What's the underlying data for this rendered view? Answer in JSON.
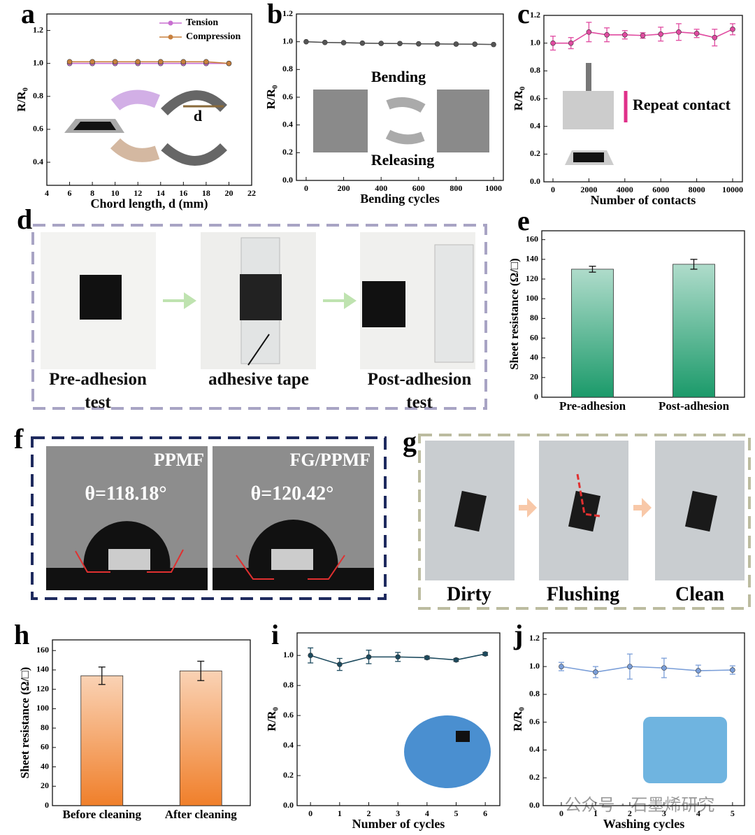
{
  "chart_data": [
    {
      "type": "line",
      "xlabel": "Chord length, d (mm)",
      "ylabel": "R/R₀",
      "x": [
        6,
        8,
        10,
        12,
        14,
        16,
        18,
        20
      ],
      "series": [
        {
          "name": "Tension",
          "color": "#c86fd0",
          "values": [
            1.0,
            1.0,
            1.0,
            1.0,
            1.0,
            1.0,
            1.0,
            1.0
          ]
        },
        {
          "name": "Compression",
          "color": "#c8803e",
          "values": [
            1.01,
            1.01,
            1.01,
            1.01,
            1.01,
            1.01,
            1.01,
            1.0
          ]
        }
      ],
      "xlim": [
        4,
        22
      ],
      "xticks": [
        4,
        6,
        8,
        10,
        12,
        14,
        16,
        18,
        20,
        22
      ],
      "ylim": [
        0.26,
        1.3
      ],
      "yticks": [
        0.4,
        0.6,
        0.8,
        {
          "value": 1.0,
          "label": "1.0"
        },
        1.2
      ],
      "legend": "upper right",
      "annotations": [
        "d"
      ]
    },
    {
      "type": "line",
      "xlabel": "Bending cycles",
      "ylabel": "R/R₀",
      "color": "#555555",
      "x": [
        0,
        100,
        200,
        300,
        400,
        500,
        600,
        700,
        800,
        900,
        1000
      ],
      "values": [
        1.0,
        0.995,
        0.993,
        0.99,
        0.988,
        0.987,
        0.985,
        0.984,
        0.983,
        0.982,
        0.98
      ],
      "xlim": [
        -52,
        1052
      ],
      "xticks": [
        0,
        200,
        400,
        600,
        800,
        1000
      ],
      "ylim": [
        0,
        1.2
      ],
      "yticks": [
        {
          "value": 0,
          "label": "0.0"
        },
        0.2,
        0.4,
        0.6,
        0.8,
        {
          "value": 1.0,
          "label": "1.0"
        },
        1.2
      ],
      "annotations": [
        "Bending",
        "Releasing"
      ]
    },
    {
      "type": "line",
      "xlabel": "Number of contacts",
      "ylabel": "R/R₀",
      "color": "#e04aa0",
      "x": [
        0,
        1000,
        2000,
        3000,
        4000,
        5000,
        6000,
        7000,
        8000,
        9000,
        10000
      ],
      "values": [
        1.0,
        1.0,
        1.08,
        1.06,
        1.06,
        1.055,
        1.065,
        1.08,
        1.07,
        1.04,
        1.1
      ],
      "errors": [
        0.05,
        0.04,
        0.07,
        0.05,
        0.03,
        0.02,
        0.05,
        0.06,
        0.03,
        0.06,
        0.04
      ],
      "xlim": [
        -506,
        10545
      ],
      "xticks": [
        0,
        2000,
        4000,
        6000,
        8000,
        10000
      ],
      "ylim": [
        0,
        1.2
      ],
      "yticks": [
        {
          "value": 0,
          "label": "0.0"
        },
        0.2,
        0.4,
        0.6,
        0.8,
        {
          "value": 1.0,
          "label": "1.0"
        },
        1.2
      ],
      "annotations": [
        "Repeat contact"
      ]
    },
    {
      "type": "bar",
      "ylabel": "Sheet resistance (Ω/□)",
      "color": "#1b9a6a",
      "categories": [
        "Pre-adhesion",
        "Post-adhesion"
      ],
      "values": [
        130,
        135
      ],
      "errors": [
        3,
        5
      ],
      "ylim": [
        0,
        169
      ],
      "yticks": [
        0,
        20,
        40,
        60,
        80,
        100,
        120,
        140,
        160
      ]
    },
    {
      "type": "bar",
      "ylabel": "Sheet resistance (Ω/□)",
      "color": "#f07f2a",
      "categories": [
        "Before cleaning",
        "After cleaning"
      ],
      "values": [
        134,
        139
      ],
      "errors": [
        9,
        10
      ],
      "ylim": [
        0,
        171
      ],
      "yticks": [
        0,
        20,
        40,
        60,
        80,
        100,
        120,
        140,
        160
      ]
    },
    {
      "type": "line",
      "xlabel": "Number of cycles",
      "ylabel": "R/R₀",
      "color": "#1c4a5e",
      "x": [
        0,
        1,
        2,
        3,
        4,
        5,
        6
      ],
      "values": [
        1.0,
        0.94,
        0.99,
        0.99,
        0.985,
        0.97,
        1.01
      ],
      "errors": [
        0.05,
        0.04,
        0.045,
        0.03,
        0.01,
        0.01,
        0.01
      ],
      "xlim": [
        -0.46,
        6.5
      ],
      "xticks": [
        0,
        1,
        2,
        3,
        4,
        5,
        6
      ],
      "ylim": [
        0,
        1.15
      ],
      "yticks": [
        {
          "value": 0,
          "label": "0.0"
        },
        0.2,
        0.4,
        0.6,
        0.8,
        {
          "value": 1.0,
          "label": "1.0"
        }
      ]
    },
    {
      "type": "line",
      "xlabel": "Washing cycles",
      "ylabel": "R/R₀",
      "color": "#7a9ed8",
      "x": [
        0,
        1,
        2,
        3,
        4,
        5
      ],
      "values": [
        1.0,
        0.96,
        1.0,
        0.99,
        0.97,
        0.975
      ],
      "errors": [
        0.03,
        0.04,
        0.09,
        0.07,
        0.04,
        0.03
      ],
      "xlim": [
        -0.53,
        5.35
      ],
      "xticks": [
        0,
        1,
        2,
        3,
        4,
        5
      ],
      "ylim": [
        0,
        1.242
      ],
      "yticks": [
        {
          "value": 0,
          "label": "0.0"
        },
        0.2,
        0.4,
        0.6,
        0.8,
        {
          "value": 1.0,
          "label": "1.0"
        },
        1.2
      ]
    }
  ],
  "panel_labels": [
    "a",
    "b",
    "c",
    "d",
    "e",
    "f",
    "g",
    "h",
    "i",
    "j"
  ],
  "panel_d": {
    "captions": [
      "Pre-adhesion test",
      "adhesive tape",
      "Post-adhesion test"
    ]
  },
  "panel_f": {
    "left_label": "PPMF",
    "left_angle": "θ=118.18°",
    "right_label": "FG/PPMF",
    "right_angle": "θ=120.42°"
  },
  "panel_g": {
    "captions": [
      "Dirty",
      "Flushing",
      "Clean"
    ]
  },
  "watermark": "公众号 · 石墨烯研究"
}
